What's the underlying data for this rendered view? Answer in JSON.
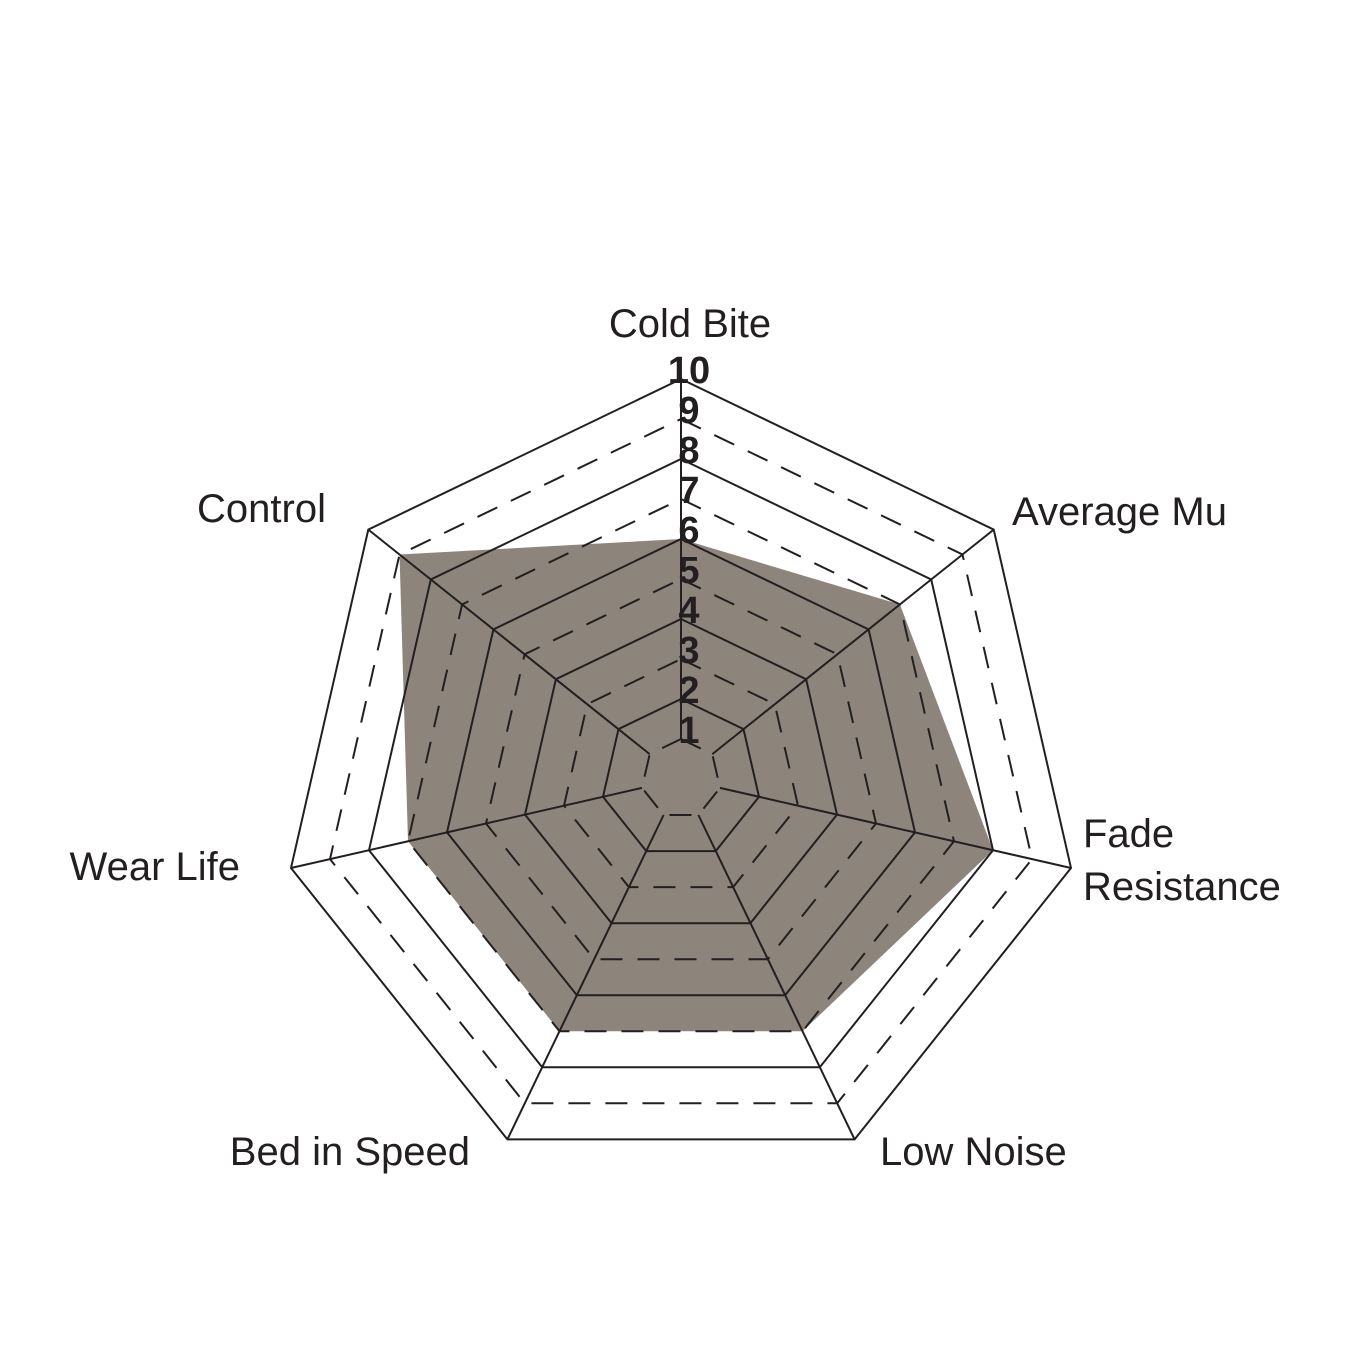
{
  "chart_data": {
    "type": "radar",
    "title": "",
    "categories": [
      "Cold Bite",
      "Average Mu",
      "Fade Resistance",
      "Low Noise",
      "Bed in Speed",
      "Wear Life",
      "Control"
    ],
    "values": [
      6,
      7,
      8,
      7,
      7,
      7,
      9
    ],
    "axis_range": [
      0,
      10
    ],
    "tick_labels": [
      "1",
      "2",
      "3",
      "4",
      "5",
      "6",
      "7",
      "8",
      "9",
      "10"
    ],
    "grid": {
      "solid_rings": [
        2,
        4,
        6,
        8,
        10
      ],
      "dashed_rings": [
        1,
        3,
        5,
        7,
        9
      ],
      "spokes_from_ring": 1,
      "legend": "none"
    },
    "layout_hints": {
      "start_axis": "top",
      "direction": "clockwise",
      "tick_axis": "Cold Bite"
    },
    "colors": {
      "fill": "#8d857c",
      "line": "#231f20",
      "text": "#231f20",
      "background": "#ffffff"
    }
  }
}
